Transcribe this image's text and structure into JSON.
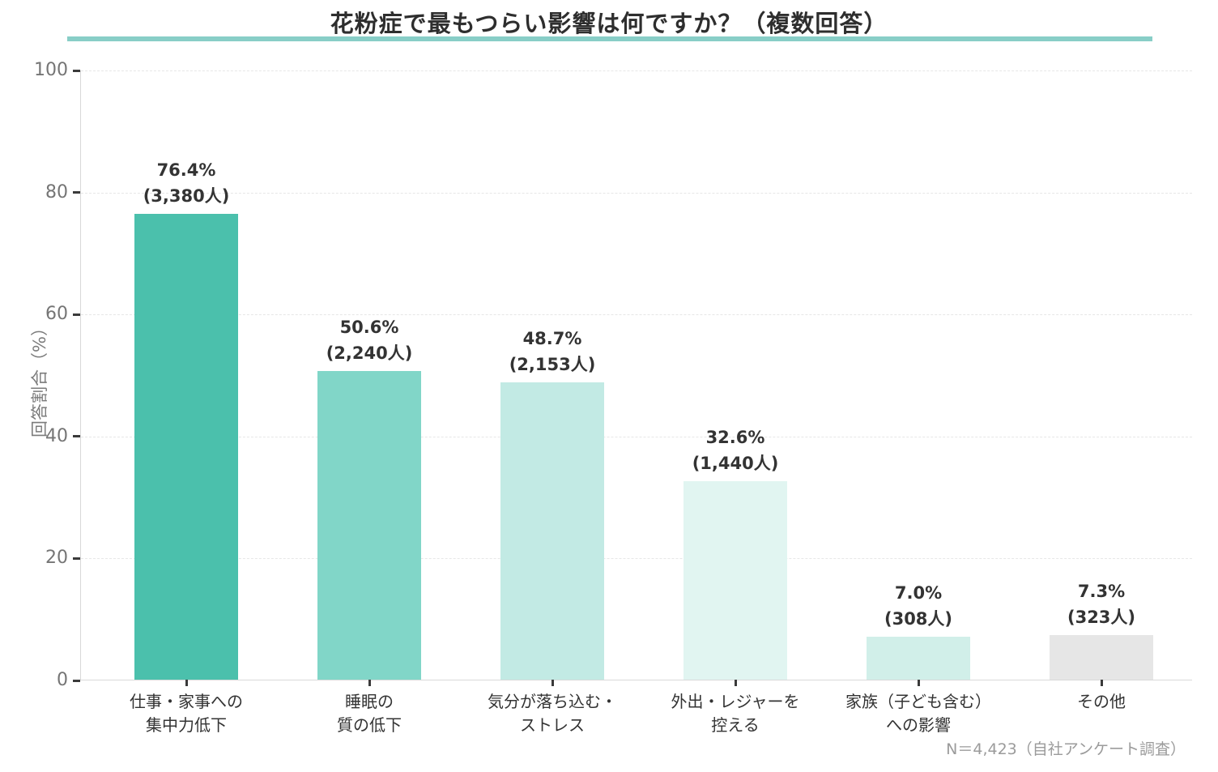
{
  "header": {
    "title": "花粉症で最もつらい影響は何ですか？（複数回答）",
    "underline_color": "#88cec7"
  },
  "footnote": "N＝4,423（自社アンケート調査）",
  "colors": {
    "axis_line": "#d9d9d9",
    "grid_line": "#e7e7e7",
    "tick_mark": "#3a3a3a",
    "y_tick_label": "#757575",
    "value_label": "#333333",
    "category_label": "#333333",
    "footnote": "#9b9b9b",
    "title_underline": "#88cec7"
  },
  "chart_data": {
    "type": "bar",
    "title": "花粉症で最もつらい影響は何ですか？（複数回答）",
    "xlabel": "",
    "ylabel": "回答割合（%）",
    "ylim": [
      0,
      100
    ],
    "yticks": [
      0,
      20,
      40,
      60,
      80,
      100
    ],
    "grid": "horizontal-dashed",
    "legend_position": "none",
    "sample_note": "N＝4,423（自社アンケート調査）",
    "categories": [
      "仕事・家事への\n集中力低下",
      "睡眠の\n質の低下",
      "気分が落ち込む・\nストレス",
      "外出・レジャーを\n控える",
      "家族（子ども含む）\nへの影響",
      "その他"
    ],
    "values": [
      76.4,
      50.6,
      48.7,
      32.6,
      7.0,
      7.3
    ],
    "counts": [
      3380,
      2240,
      2153,
      1440,
      308,
      323
    ],
    "bars": [
      {
        "category": "仕事・家事への\n集中力低下",
        "value": 76.4,
        "value_label": "76.4%",
        "count_label": "(3,380人)",
        "color": "#4bc0ac"
      },
      {
        "category": "睡眠の\n質の低下",
        "value": 50.6,
        "value_label": "50.6%",
        "count_label": "(2,240人)",
        "color": "#81d6c8"
      },
      {
        "category": "気分が落ち込む・\nストレス",
        "value": 48.7,
        "value_label": "48.7%",
        "count_label": "(2,153人)",
        "color": "#c2eae4"
      },
      {
        "category": "外出・レジャーを\n控える",
        "value": 32.6,
        "value_label": "32.6%",
        "count_label": "(1,440人)",
        "color": "#e1f5f1"
      },
      {
        "category": "家族（子ども含む）\nへの影響",
        "value": 7.0,
        "value_label": "7.0%",
        "count_label": "(308人)",
        "color": "#d1efe9"
      },
      {
        "category": "その他",
        "value": 7.3,
        "value_label": "7.3%",
        "count_label": "(323人)",
        "color": "#e6e6e6"
      }
    ]
  }
}
